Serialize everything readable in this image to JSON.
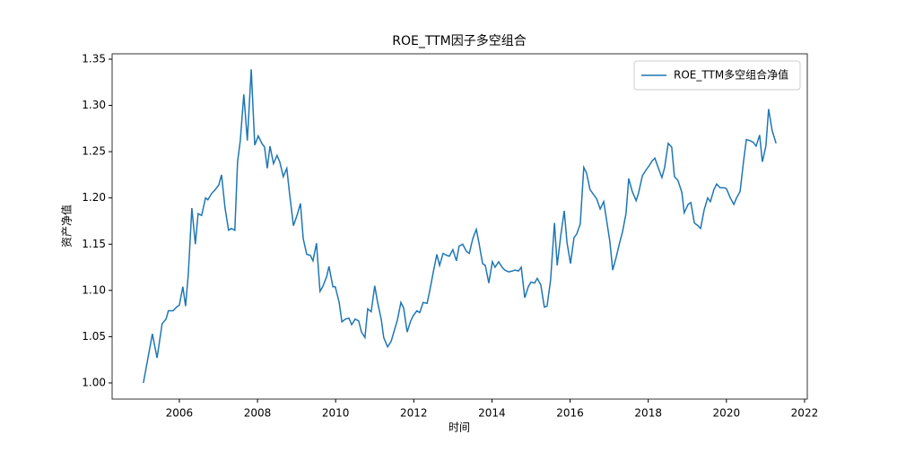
{
  "chart_data": {
    "type": "line",
    "title": "ROE_TTM因子多空组合",
    "xlabel": "时间",
    "ylabel": "资产净值",
    "x": [
      2005.08,
      2005.31,
      2005.43,
      2005.56,
      2005.66,
      2005.72,
      2005.84,
      2005.93,
      2006.0,
      2006.09,
      2006.16,
      2006.23,
      2006.32,
      2006.41,
      2006.48,
      2006.57,
      2006.67,
      2006.73,
      2006.83,
      2006.92,
      2007.01,
      2007.08,
      2007.17,
      2007.26,
      2007.33,
      2007.42,
      2007.49,
      2007.56,
      2007.65,
      2007.74,
      2007.84,
      2007.93,
      2008.02,
      2008.11,
      2008.18,
      2008.25,
      2008.32,
      2008.41,
      2008.5,
      2008.57,
      2008.66,
      2008.75,
      2008.82,
      2008.92,
      2009.01,
      2009.1,
      2009.17,
      2009.26,
      2009.35,
      2009.42,
      2009.51,
      2009.6,
      2009.67,
      2009.77,
      2009.83,
      2009.93,
      2009.99,
      2010.09,
      2010.16,
      2010.25,
      2010.34,
      2010.41,
      2010.5,
      2010.59,
      2010.66,
      2010.75,
      2010.82,
      2010.91,
      2011.0,
      2011.07,
      2011.17,
      2011.23,
      2011.33,
      2011.42,
      2011.49,
      2011.58,
      2011.67,
      2011.74,
      2011.83,
      2011.92,
      2011.99,
      2012.08,
      2012.15,
      2012.24,
      2012.34,
      2012.41,
      2012.5,
      2012.59,
      2012.66,
      2012.75,
      2012.84,
      2012.91,
      2013.0,
      2013.09,
      2013.16,
      2013.25,
      2013.35,
      2013.42,
      2013.51,
      2013.6,
      2013.67,
      2013.76,
      2013.83,
      2013.92,
      2014.01,
      2014.08,
      2014.17,
      2014.26,
      2014.33,
      2014.43,
      2014.52,
      2014.59,
      2014.68,
      2014.75,
      2014.84,
      2014.93,
      2015.0,
      2015.09,
      2015.16,
      2015.25,
      2015.34,
      2015.41,
      2015.5,
      2015.6,
      2015.67,
      2015.76,
      2015.85,
      2015.92,
      2016.01,
      2016.1,
      2016.17,
      2016.26,
      2016.35,
      2016.42,
      2016.51,
      2016.61,
      2016.68,
      2016.77,
      2016.86,
      2016.93,
      2017.02,
      2017.09,
      2017.18,
      2017.27,
      2017.34,
      2017.43,
      2017.5,
      2017.59,
      2017.69,
      2017.75,
      2017.85,
      2017.94,
      2018.01,
      2018.1,
      2018.17,
      2018.26,
      2018.35,
      2018.42,
      2018.51,
      2018.6,
      2018.67,
      2018.76,
      2018.86,
      2018.92,
      2019.02,
      2019.09,
      2019.18,
      2019.27,
      2019.34,
      2019.43,
      2019.52,
      2019.59,
      2019.68,
      2019.75,
      2019.84,
      2019.94,
      2020.0,
      2020.1,
      2020.19,
      2020.26,
      2020.35,
      2020.44,
      2020.51,
      2020.6,
      2020.69,
      2020.76,
      2020.85,
      2020.92,
      2021.01,
      2021.08,
      2021.17,
      2021.27
    ],
    "series": [
      {
        "name": "ROE_TTM多空组合净值",
        "color": "#1f77b4",
        "values": [
          1.0,
          1.053,
          1.027,
          1.064,
          1.069,
          1.078,
          1.078,
          1.082,
          1.084,
          1.104,
          1.083,
          1.118,
          1.189,
          1.15,
          1.183,
          1.181,
          1.2,
          1.198,
          1.205,
          1.209,
          1.214,
          1.225,
          1.189,
          1.165,
          1.167,
          1.165,
          1.239,
          1.262,
          1.312,
          1.262,
          1.339,
          1.257,
          1.267,
          1.259,
          1.255,
          1.232,
          1.256,
          1.237,
          1.246,
          1.239,
          1.223,
          1.232,
          1.205,
          1.17,
          1.181,
          1.194,
          1.156,
          1.139,
          1.138,
          1.132,
          1.151,
          1.099,
          1.104,
          1.115,
          1.126,
          1.104,
          1.104,
          1.087,
          1.066,
          1.069,
          1.07,
          1.063,
          1.069,
          1.067,
          1.055,
          1.049,
          1.08,
          1.077,
          1.105,
          1.088,
          1.068,
          1.049,
          1.039,
          1.045,
          1.055,
          1.068,
          1.087,
          1.081,
          1.055,
          1.067,
          1.073,
          1.078,
          1.076,
          1.087,
          1.086,
          1.1,
          1.12,
          1.139,
          1.127,
          1.14,
          1.138,
          1.137,
          1.144,
          1.132,
          1.148,
          1.15,
          1.142,
          1.14,
          1.156,
          1.166,
          1.151,
          1.129,
          1.127,
          1.108,
          1.131,
          1.125,
          1.131,
          1.125,
          1.122,
          1.12,
          1.121,
          1.122,
          1.121,
          1.125,
          1.092,
          1.104,
          1.109,
          1.108,
          1.113,
          1.106,
          1.082,
          1.083,
          1.111,
          1.173,
          1.127,
          1.159,
          1.186,
          1.152,
          1.129,
          1.157,
          1.161,
          1.172,
          1.233,
          1.227,
          1.209,
          1.203,
          1.199,
          1.188,
          1.196,
          1.177,
          1.152,
          1.122,
          1.136,
          1.152,
          1.163,
          1.183,
          1.221,
          1.207,
          1.197,
          1.205,
          1.224,
          1.23,
          1.234,
          1.24,
          1.243,
          1.232,
          1.222,
          1.233,
          1.259,
          1.255,
          1.223,
          1.219,
          1.206,
          1.184,
          1.193,
          1.195,
          1.173,
          1.17,
          1.167,
          1.187,
          1.2,
          1.196,
          1.209,
          1.215,
          1.211,
          1.211,
          1.21,
          1.2,
          1.193,
          1.2,
          1.207,
          1.24,
          1.263,
          1.262,
          1.26,
          1.256,
          1.268,
          1.239,
          1.256,
          1.296,
          1.273,
          1.259
        ]
      }
    ],
    "xlim": [
      2004.28,
      2022.07
    ],
    "ylim": [
      0.9825,
      1.3558
    ],
    "xticks": [
      2006,
      2008,
      2010,
      2012,
      2014,
      2016,
      2018,
      2020,
      2022
    ],
    "yticks": [
      {
        "value": 1,
        "label": "1.00"
      },
      1.05,
      {
        "value": 1.1,
        "label": "1.10"
      },
      1.15,
      {
        "value": 1.2,
        "label": "1.20"
      },
      1.25,
      {
        "value": 1.3,
        "label": "1.30"
      },
      1.35
    ],
    "legend": "upper right"
  }
}
